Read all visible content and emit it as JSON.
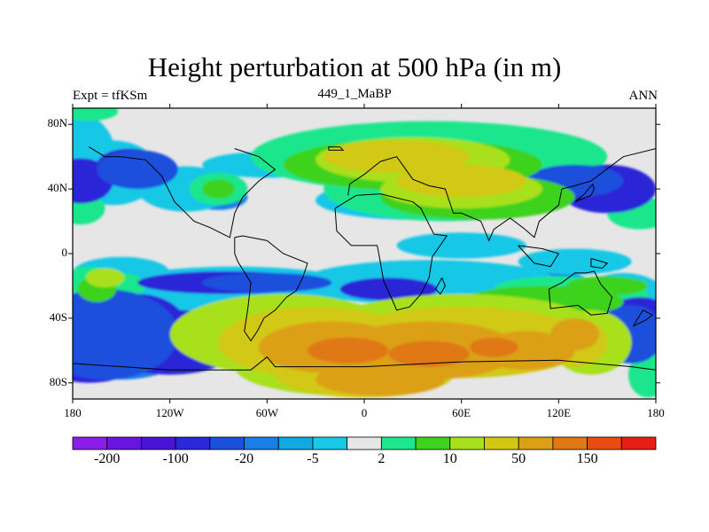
{
  "chart_data": {
    "type": "heatmap",
    "title": "Height perturbation at 500 hPa (in m)",
    "subtitle": "449_1_MaBP",
    "left_label": "Expt = tfKSm",
    "right_label": "ANN",
    "x_range": [
      -180,
      180
    ],
    "y_range": [
      -90,
      90
    ],
    "x_ticks": [
      {
        "value": -180,
        "label": "180"
      },
      {
        "value": -120,
        "label": "120W"
      },
      {
        "value": -60,
        "label": "60W"
      },
      {
        "value": 0,
        "label": "0"
      },
      {
        "value": 60,
        "label": "60E"
      },
      {
        "value": 120,
        "label": "120E"
      },
      {
        "value": 180,
        "label": "180"
      }
    ],
    "y_ticks": [
      {
        "value": 80,
        "label": "80N"
      },
      {
        "value": 40,
        "label": "40N"
      },
      {
        "value": 0,
        "label": "0"
      },
      {
        "value": -40,
        "label": "40S"
      },
      {
        "value": -80,
        "label": "80S"
      }
    ],
    "colorbar": {
      "colors": [
        "#8a1ee6",
        "#6a14e0",
        "#4a14d6",
        "#2a28d8",
        "#1a50dc",
        "#1a7ee6",
        "#12a8e0",
        "#18c8e6",
        "#e6e6e6",
        "#1ee68c",
        "#3cd21e",
        "#a8e01e",
        "#d2c814",
        "#dca014",
        "#e07814",
        "#e64c14",
        "#e61e14"
      ],
      "labels": [
        {
          "boundary": 1,
          "text": "-200"
        },
        {
          "boundary": 3,
          "text": "-100"
        },
        {
          "boundary": 5,
          "text": "-20"
        },
        {
          "boundary": 7,
          "text": "-5"
        },
        {
          "boundary": 9,
          "text": "2"
        },
        {
          "boundary": 11,
          "text": "10"
        },
        {
          "boundary": 13,
          "text": "50"
        },
        {
          "boundary": 15,
          "text": "150"
        }
      ]
    },
    "contour_fields": [
      {
        "color": "#1a7ee6",
        "blobs": [
          [
            -175,
            55,
            18,
            22
          ],
          [
            -150,
            48,
            22,
            14
          ],
          [
            -150,
            -10,
            25,
            6
          ],
          [
            -100,
            -35,
            60,
            10
          ],
          [
            20,
            -20,
            30,
            8
          ],
          [
            100,
            -18,
            40,
            8
          ],
          [
            25,
            33,
            50,
            8
          ],
          [
            -90,
            35,
            18,
            8
          ],
          [
            160,
            -45,
            25,
            20
          ],
          [
            -150,
            -60,
            40,
            18
          ]
        ]
      },
      {
        "color": "#18c8e6",
        "blobs": [
          [
            -175,
            58,
            22,
            28
          ],
          [
            -155,
            50,
            28,
            20
          ],
          [
            -150,
            -12,
            30,
            10
          ],
          [
            -80,
            -22,
            80,
            14
          ],
          [
            40,
            -18,
            80,
            14
          ],
          [
            30,
            33,
            60,
            12
          ],
          [
            -60,
            55,
            40,
            8
          ],
          [
            90,
            62,
            55,
            10
          ],
          [
            -110,
            40,
            30,
            14
          ],
          [
            160,
            -40,
            35,
            28
          ],
          [
            60,
            5,
            40,
            8
          ],
          [
            130,
            -5,
            35,
            8
          ]
        ]
      },
      {
        "color": "#1ee68c",
        "blobs": [
          [
            -170,
            88,
            18,
            6
          ],
          [
            -175,
            28,
            15,
            10
          ],
          [
            -170,
            -20,
            18,
            12
          ],
          [
            -150,
            -20,
            15,
            8
          ],
          [
            40,
            60,
            110,
            22
          ],
          [
            50,
            40,
            75,
            20
          ],
          [
            -90,
            40,
            18,
            10
          ],
          [
            170,
            25,
            20,
            10
          ],
          [
            120,
            -22,
            40,
            8
          ],
          [
            155,
            -25,
            20,
            10
          ],
          [
            175,
            -75,
            12,
            14
          ]
        ]
      },
      {
        "color": "#2a28d8",
        "blobs": [
          [
            -170,
            -55,
            40,
            25
          ],
          [
            -140,
            -45,
            30,
            20
          ],
          [
            -175,
            45,
            20,
            14
          ],
          [
            -145,
            55,
            20,
            10
          ],
          [
            -120,
            -55,
            45,
            20
          ],
          [
            170,
            -45,
            25,
            18
          ],
          [
            -85,
            -18,
            55,
            7
          ],
          [
            15,
            -22,
            30,
            7
          ],
          [
            150,
            40,
            30,
            15
          ],
          [
            -80,
            -60,
            20,
            10
          ]
        ]
      },
      {
        "color": "#1a50dc",
        "blobs": [
          [
            -160,
            -50,
            45,
            28
          ],
          [
            -140,
            52,
            25,
            12
          ],
          [
            165,
            -50,
            20,
            18
          ],
          [
            -60,
            -18,
            40,
            6
          ],
          [
            130,
            45,
            30,
            10
          ]
        ]
      },
      {
        "color": "#3cd21e",
        "blobs": [
          [
            -90,
            40,
            10,
            6
          ],
          [
            30,
            55,
            80,
            16
          ],
          [
            70,
            35,
            60,
            14
          ],
          [
            -165,
            -22,
            12,
            8
          ],
          [
            110,
            -30,
            50,
            10
          ],
          [
            150,
            -20,
            25,
            6
          ]
        ]
      },
      {
        "color": "#a8e01e",
        "blobs": [
          [
            30,
            58,
            60,
            14
          ],
          [
            60,
            40,
            50,
            12
          ],
          [
            -50,
            -50,
            70,
            25
          ],
          [
            60,
            -50,
            90,
            25
          ],
          [
            140,
            -55,
            25,
            20
          ],
          [
            -10,
            -70,
            70,
            18
          ],
          [
            -160,
            -15,
            12,
            6
          ]
        ]
      },
      {
        "color": "#d2c814",
        "blobs": [
          [
            20,
            60,
            45,
            10
          ],
          [
            60,
            45,
            40,
            10
          ],
          [
            -30,
            -55,
            60,
            22
          ],
          [
            60,
            -55,
            80,
            22
          ],
          [
            130,
            -55,
            20,
            15
          ],
          [
            0,
            -75,
            55,
            14
          ]
        ]
      },
      {
        "color": "#dca014",
        "blobs": [
          [
            -20,
            -58,
            45,
            16
          ],
          [
            40,
            -60,
            55,
            18
          ],
          [
            100,
            -60,
            30,
            12
          ],
          [
            130,
            -50,
            15,
            10
          ],
          [
            10,
            -78,
            40,
            10
          ]
        ]
      },
      {
        "color": "#e07814",
        "blobs": [
          [
            -10,
            -60,
            25,
            8
          ],
          [
            40,
            -62,
            25,
            8
          ],
          [
            80,
            -58,
            15,
            6
          ]
        ]
      }
    ]
  }
}
